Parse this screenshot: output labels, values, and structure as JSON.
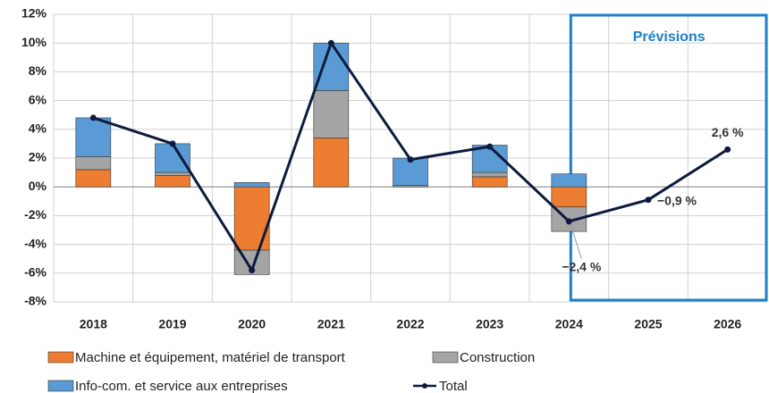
{
  "chart_data": {
    "type": "stacked-bar-line",
    "categories": [
      "2018",
      "2019",
      "2020",
      "2021",
      "2022",
      "2023",
      "2024",
      "2025",
      "2026"
    ],
    "series": [
      {
        "name": "Machine et équipement, matériel de transport",
        "color": "#ed7d31",
        "values": [
          1.2,
          0.8,
          -4.4,
          3.4,
          0,
          0.7,
          -1.4,
          null,
          null
        ]
      },
      {
        "name": "Construction",
        "color": "#a5a5a5",
        "values": [
          0.9,
          0.2,
          -1.7,
          3.3,
          0.1,
          0.3,
          -1.7,
          null,
          null
        ]
      },
      {
        "name": "Info-com. et service aux entreprises",
        "color": "#5b9bd5",
        "values": [
          2.7,
          2.0,
          0.3,
          3.3,
          1.9,
          1.9,
          0.9,
          null,
          null
        ]
      },
      {
        "name": "Total",
        "color": "#0d1b3e",
        "type": "line",
        "values": [
          4.8,
          3.0,
          -5.8,
          10.0,
          1.9,
          2.8,
          -2.4,
          -0.9,
          2.6
        ],
        "value_labels": [
          null,
          null,
          null,
          null,
          null,
          null,
          "−2,4 %",
          "−0,9 %",
          "2,6 %"
        ]
      }
    ],
    "annotation": "Prévisions",
    "ylim": [
      -8,
      12
    ],
    "yticks": [
      {
        "value": -8,
        "label": "-8%"
      },
      {
        "value": -6,
        "label": "-6%"
      },
      {
        "value": -4,
        "label": "-4%"
      },
      {
        "value": -2,
        "label": "-2%"
      },
      {
        "value": 0,
        "label": "0%"
      },
      {
        "value": 2,
        "label": "2%"
      },
      {
        "value": 4,
        "label": "4%"
      },
      {
        "value": 6,
        "label": "6%"
      },
      {
        "value": 8,
        "label": "8%"
      },
      {
        "value": 10,
        "label": "10%"
      },
      {
        "value": 12,
        "label": "12%"
      }
    ],
    "grid": true
  }
}
